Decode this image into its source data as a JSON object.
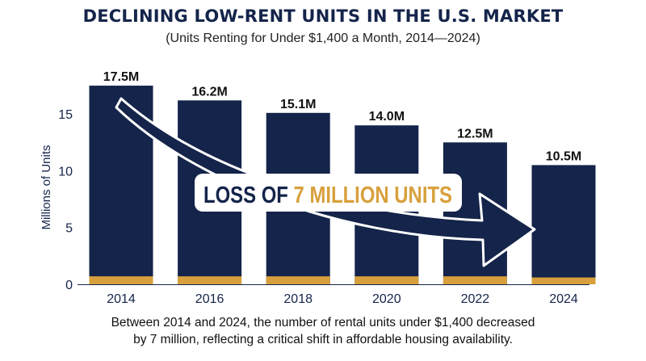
{
  "chart_data": {
    "type": "bar",
    "title": "DECLINING LOW-RENT UNITS IN THE U.S. MARKET",
    "subtitle": "(Units Renting for Under $1,400 a Month, 2014—2024)",
    "ylabel": "Millions of Units",
    "xlabel": "",
    "categories": [
      "2014",
      "2016",
      "2018",
      "2020",
      "2022",
      "2024"
    ],
    "values": [
      17.5,
      16.2,
      15.1,
      14.0,
      12.5,
      10.5
    ],
    "value_labels": [
      "17.5M",
      "16.2M",
      "15.1M",
      "14.0M",
      "12.5M",
      "10.5M"
    ],
    "base_segment_values": [
      0.7,
      0.7,
      0.7,
      0.7,
      0.7,
      0.6
    ],
    "yticks": [
      0,
      5,
      10,
      15
    ],
    "ylim": [
      0,
      18.5
    ],
    "grid": false,
    "annotation": {
      "prefix": "LOSS OF ",
      "highlight": "7 MILLION UNITS"
    },
    "colors": {
      "bar": "#14244a",
      "base_segment": "#d8a03c",
      "highlight_text": "#d8a03c",
      "arrow": "#14244a"
    }
  },
  "caption": {
    "line1": "Between 2014 and 2024, the number of rental units under $1,400 decreased",
    "line2": "by 7 million, reflecting a critical shift in affordable housing availability."
  }
}
